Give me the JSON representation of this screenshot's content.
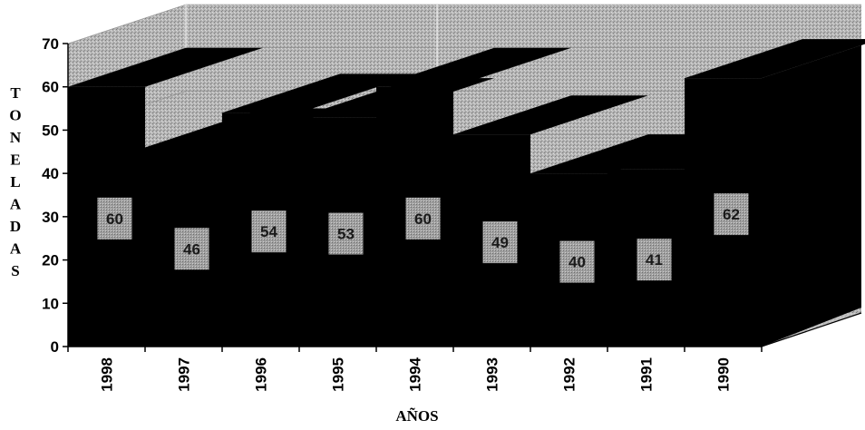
{
  "chart_data": {
    "type": "bar",
    "style": "3d-area",
    "title": "",
    "xlabel": "AÑOS",
    "ylabel": "TONELADAS",
    "categories": [
      "1998",
      "1997",
      "1996",
      "1995",
      "1994",
      "1993",
      "1992",
      "1991",
      "1990"
    ],
    "series": [
      {
        "values": [
          60,
          46,
          54,
          53,
          60,
          49,
          40,
          41,
          62
        ]
      }
    ],
    "ylim": [
      0,
      70
    ],
    "yticks": [
      "0",
      "10",
      "20",
      "30",
      "40",
      "50",
      "60",
      "70"
    ],
    "grid": true,
    "legend": "none",
    "colors": {
      "fill": "#000000",
      "wall": "#a8a8a8",
      "label_bg": "#9a9a9a",
      "label_text": "#1a1a1a"
    }
  }
}
